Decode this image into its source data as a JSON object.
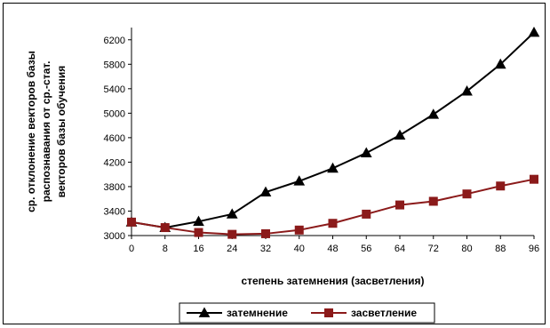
{
  "chart_data": {
    "type": "line",
    "x": [
      0,
      8,
      16,
      24,
      32,
      40,
      48,
      56,
      64,
      72,
      80,
      88,
      96
    ],
    "series": [
      {
        "name": "затемнение",
        "values": [
          3220,
          3130,
          3230,
          3350,
          3710,
          3890,
          4100,
          4350,
          4640,
          4980,
          5360,
          5800,
          6320
        ],
        "color": "#000000",
        "marker": "triangle"
      },
      {
        "name": "засветление",
        "values": [
          3220,
          3130,
          3050,
          3020,
          3030,
          3090,
          3200,
          3350,
          3500,
          3560,
          3680,
          3810,
          3920
        ],
        "color": "#8b1a1a",
        "marker": "square"
      }
    ],
    "xlabel": "степень затемнения (засветления)",
    "ylabel_lines": [
      "ср. отклонение векторов базы",
      "распознавания от ср.-стат.",
      "векторов базы обучения"
    ],
    "ylim": [
      3000,
      6400
    ],
    "yticks": [
      3000,
      3400,
      3800,
      4200,
      4600,
      5000,
      5400,
      5800,
      6200
    ],
    "xticks": [
      0,
      8,
      16,
      24,
      32,
      40,
      48,
      56,
      64,
      72,
      80,
      88,
      96
    ],
    "grid": false,
    "legend_position": "bottom"
  }
}
